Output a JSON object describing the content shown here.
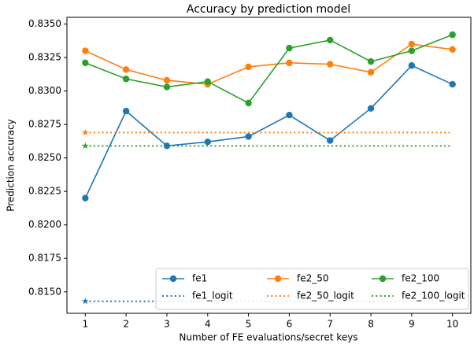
{
  "chart_data": {
    "type": "line",
    "title": "Accuracy by prediction model",
    "xlabel": "Number of FE evaluations/secret keys",
    "ylabel": "Prediction accuracy",
    "x": [
      1,
      2,
      3,
      4,
      5,
      6,
      7,
      8,
      9,
      10
    ],
    "xlim": [
      0.55,
      10.45
    ],
    "xticks": [
      1,
      2,
      3,
      4,
      5,
      6,
      7,
      8,
      9,
      10
    ],
    "ylim": [
      0.8134,
      0.8355
    ],
    "yticks": [
      {
        "value": 0.815,
        "label": "0.8150"
      },
      0.8175,
      {
        "value": 0.82,
        "label": "0.8200"
      },
      0.8225,
      {
        "value": 0.825,
        "label": "0.8250"
      },
      0.8275,
      {
        "value": 0.83,
        "label": "0.8300"
      },
      0.8325,
      {
        "value": 0.835,
        "label": "0.8350"
      }
    ],
    "legend": "lower right",
    "series": [
      {
        "name": "fe1",
        "color": "#1f77b4",
        "linestyle": "solid",
        "marker": "circle",
        "values": [
          0.822,
          0.8285,
          0.8259,
          0.8262,
          0.8266,
          0.8282,
          0.8263,
          0.8287,
          0.8319,
          0.8305
        ]
      },
      {
        "name": "fe1_logit",
        "color": "#1f77b4",
        "linestyle": "dotted",
        "marker": "star",
        "values": [
          0.8143,
          0.8143,
          0.8143,
          0.8143,
          0.8143,
          0.8143,
          0.8143,
          0.8143,
          0.8143,
          0.8143
        ]
      },
      {
        "name": "fe2_50",
        "color": "#ff7f0e",
        "linestyle": "solid",
        "marker": "circle",
        "values": [
          0.833,
          0.8316,
          0.8308,
          0.8305,
          0.8318,
          0.8321,
          0.832,
          0.8314,
          0.8335,
          0.8331
        ]
      },
      {
        "name": "fe2_50_logit",
        "color": "#ff7f0e",
        "linestyle": "dotted",
        "marker": "star",
        "values": [
          0.8269,
          0.8269,
          0.8269,
          0.8269,
          0.8269,
          0.8269,
          0.8269,
          0.8269,
          0.8269,
          0.8269
        ]
      },
      {
        "name": "fe2_100",
        "color": "#2ca02c",
        "linestyle": "solid",
        "marker": "circle",
        "values": [
          0.8321,
          0.8309,
          0.8303,
          0.8307,
          0.8291,
          0.8332,
          0.8338,
          0.8322,
          0.833,
          0.8342
        ]
      },
      {
        "name": "fe2_100_logit",
        "color": "#2ca02c",
        "linestyle": "dotted",
        "marker": "star",
        "values": [
          0.8259,
          0.8259,
          0.8259,
          0.8259,
          0.8259,
          0.8259,
          0.8259,
          0.8259,
          0.8259,
          0.8259
        ]
      }
    ]
  }
}
